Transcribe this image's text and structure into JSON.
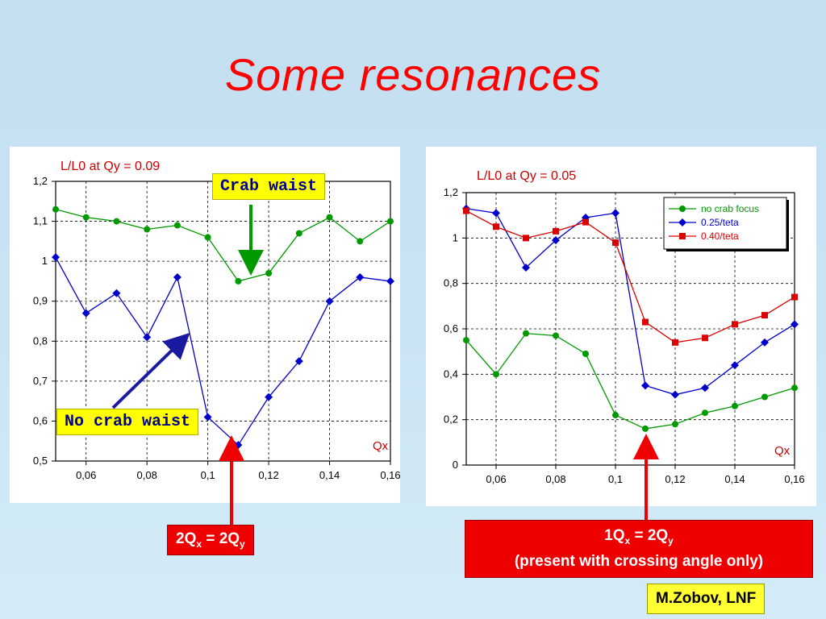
{
  "slide": {
    "title": "Some resonances",
    "labels": {
      "crab_waist": "Crab waist",
      "no_crab_waist": "No crab waist",
      "eq_left": {
        "base1": "2Q",
        "sub1": "x",
        "mid": " = 2Q",
        "sub2": "y"
      },
      "eq_right": {
        "base1": "1Q",
        "sub1": "x",
        "mid": " = 2Q",
        "sub2": "y",
        "line2": "(present with crossing angle only)"
      },
      "author": "M.Zobov, LNF"
    }
  },
  "chart_data": [
    {
      "type": "line",
      "title": "L/L0 at Qy = 0.09",
      "xlabel": "Qx",
      "xlim": [
        0.05,
        0.16
      ],
      "ylim": [
        0.5,
        1.2
      ],
      "x_ticks": [
        0.06,
        0.08,
        0.1,
        0.12,
        0.14,
        0.16
      ],
      "x_tick_labels": [
        "0,06",
        "0,08",
        "0,1",
        "0,12",
        "0,14",
        "0,16"
      ],
      "y_ticks": [
        0.5,
        0.6,
        0.7,
        0.8,
        0.9,
        1.0,
        1.1,
        1.2
      ],
      "y_tick_labels": [
        "0,5",
        "0,6",
        "0,7",
        "0,8",
        "0,9",
        "1",
        "1,1",
        "1,2"
      ],
      "grid": true,
      "series": [
        {
          "color": "#009900",
          "marker": "circle",
          "x": [
            0.05,
            0.06,
            0.07,
            0.08,
            0.09,
            0.1,
            0.11,
            0.12,
            0.13,
            0.14,
            0.15,
            0.16
          ],
          "values": [
            1.13,
            1.11,
            1.1,
            1.08,
            1.09,
            1.06,
            0.95,
            0.97,
            1.07,
            1.11,
            1.05,
            1.1
          ]
        },
        {
          "color": "#0000cc",
          "marker": "diamond",
          "x": [
            0.05,
            0.06,
            0.07,
            0.08,
            0.09,
            0.1,
            0.11,
            0.12,
            0.13,
            0.14,
            0.15,
            0.16
          ],
          "values": [
            1.01,
            0.87,
            0.92,
            0.81,
            0.96,
            0.61,
            0.54,
            0.66,
            0.75,
            0.9,
            0.96,
            0.95
          ]
        }
      ]
    },
    {
      "type": "line",
      "title": "L/L0 at Qy = 0.05",
      "xlabel": "Qx",
      "xlim": [
        0.05,
        0.16
      ],
      "ylim": [
        0,
        1.2
      ],
      "x_ticks": [
        0.06,
        0.08,
        0.1,
        0.12,
        0.14,
        0.16
      ],
      "x_tick_labels": [
        "0,06",
        "0,08",
        "0,1",
        "0,12",
        "0,14",
        "0,16"
      ],
      "y_ticks": [
        0,
        0.2,
        0.4,
        0.6,
        0.8,
        1.0,
        1.2
      ],
      "y_tick_labels": [
        "0",
        "0,2",
        "0,4",
        "0,6",
        "0,8",
        "1",
        "1,2"
      ],
      "grid": true,
      "legend": "top-right",
      "series": [
        {
          "name": "no crab focus",
          "color": "#009900",
          "marker": "circle",
          "x": [
            0.05,
            0.06,
            0.07,
            0.08,
            0.09,
            0.1,
            0.11,
            0.12,
            0.13,
            0.14,
            0.15,
            0.16
          ],
          "values": [
            0.55,
            0.4,
            0.58,
            0.57,
            0.49,
            0.22,
            0.16,
            0.18,
            0.23,
            0.26,
            0.3,
            0.34
          ]
        },
        {
          "name": "0.25/teta",
          "color": "#0000cc",
          "marker": "diamond",
          "x": [
            0.05,
            0.06,
            0.07,
            0.08,
            0.09,
            0.1,
            0.11,
            0.12,
            0.13,
            0.14,
            0.15,
            0.16
          ],
          "values": [
            1.13,
            1.11,
            0.87,
            0.99,
            1.09,
            1.11,
            0.35,
            0.31,
            0.34,
            0.44,
            0.54,
            0.62
          ]
        },
        {
          "name": "0.40/teta",
          "color": "#dd0000",
          "marker": "square",
          "x": [
            0.05,
            0.06,
            0.07,
            0.08,
            0.09,
            0.1,
            0.11,
            0.12,
            0.13,
            0.14,
            0.15,
            0.16
          ],
          "values": [
            1.12,
            1.05,
            1.0,
            1.03,
            1.07,
            0.98,
            0.63,
            0.54,
            0.56,
            0.62,
            0.66,
            0.74
          ]
        }
      ]
    }
  ]
}
